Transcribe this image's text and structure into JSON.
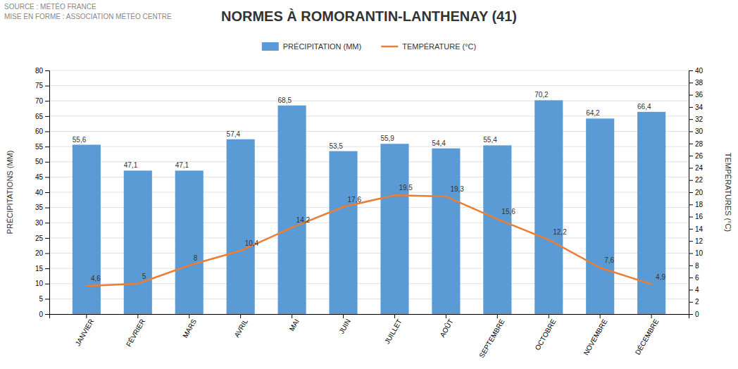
{
  "chart_data": {
    "type": "bar",
    "title": "NORMES À ROMORANTIN-LANTHENAY (41)",
    "annotations": [
      "SOURCE : MÉTÉO FRANCE",
      "MISE EN FORME : ASSOCIATION MÉTÉO CENTRE"
    ],
    "categories": [
      "JANVIER",
      "FÉVRIER",
      "MARS",
      "AVRIL",
      "MAI",
      "JUIN",
      "JUILLET",
      "AOÛT",
      "SEPTEMBRE",
      "OCTOBRE",
      "NOVEMBRE",
      "DÉCEMBRE"
    ],
    "series": [
      {
        "name": "PRÉCIPITATION (MM)",
        "type": "bar",
        "color": "#5B9BD5",
        "values": [
          55.6,
          47.1,
          47.1,
          57.4,
          68.5,
          53.5,
          55.9,
          54.4,
          55.4,
          70.2,
          64.2,
          66.4
        ],
        "value_labels": [
          "55,6",
          "47,1",
          "47,1",
          "57,4",
          "68,5",
          "53,5",
          "55,9",
          "54,4",
          "55,4",
          "70,2",
          "64,2",
          "66,4"
        ]
      },
      {
        "name": "TEMPÉRATURE (°C)",
        "type": "line",
        "color": "#ED7D31",
        "axis": "y2",
        "values": [
          4.6,
          5.0,
          8.0,
          10.4,
          14.2,
          17.6,
          19.5,
          19.3,
          15.6,
          12.2,
          7.6,
          4.9
        ],
        "value_labels": [
          "4,6",
          "5",
          "8",
          "10,4",
          "14,2",
          "17,6",
          "19,5",
          "19,3",
          "15,6",
          "12,2",
          "7,6",
          "4,9"
        ]
      }
    ],
    "y_label": "PRÉCIPITATIONS (MM)",
    "y2_label": "TEMPÉRATURES (°C)",
    "ylim": [
      0,
      80
    ],
    "yticks": [
      0,
      5,
      10,
      15,
      20,
      25,
      30,
      35,
      40,
      45,
      50,
      55,
      60,
      65,
      70,
      75,
      80
    ],
    "y2lim": [
      0,
      40
    ],
    "y2ticks": [
      0,
      2,
      4,
      6,
      8,
      10,
      12,
      14,
      16,
      18,
      20,
      22,
      24,
      26,
      28,
      30,
      32,
      34,
      36,
      38,
      40
    ],
    "grid": true,
    "legend": "top",
    "data_labels": true
  }
}
